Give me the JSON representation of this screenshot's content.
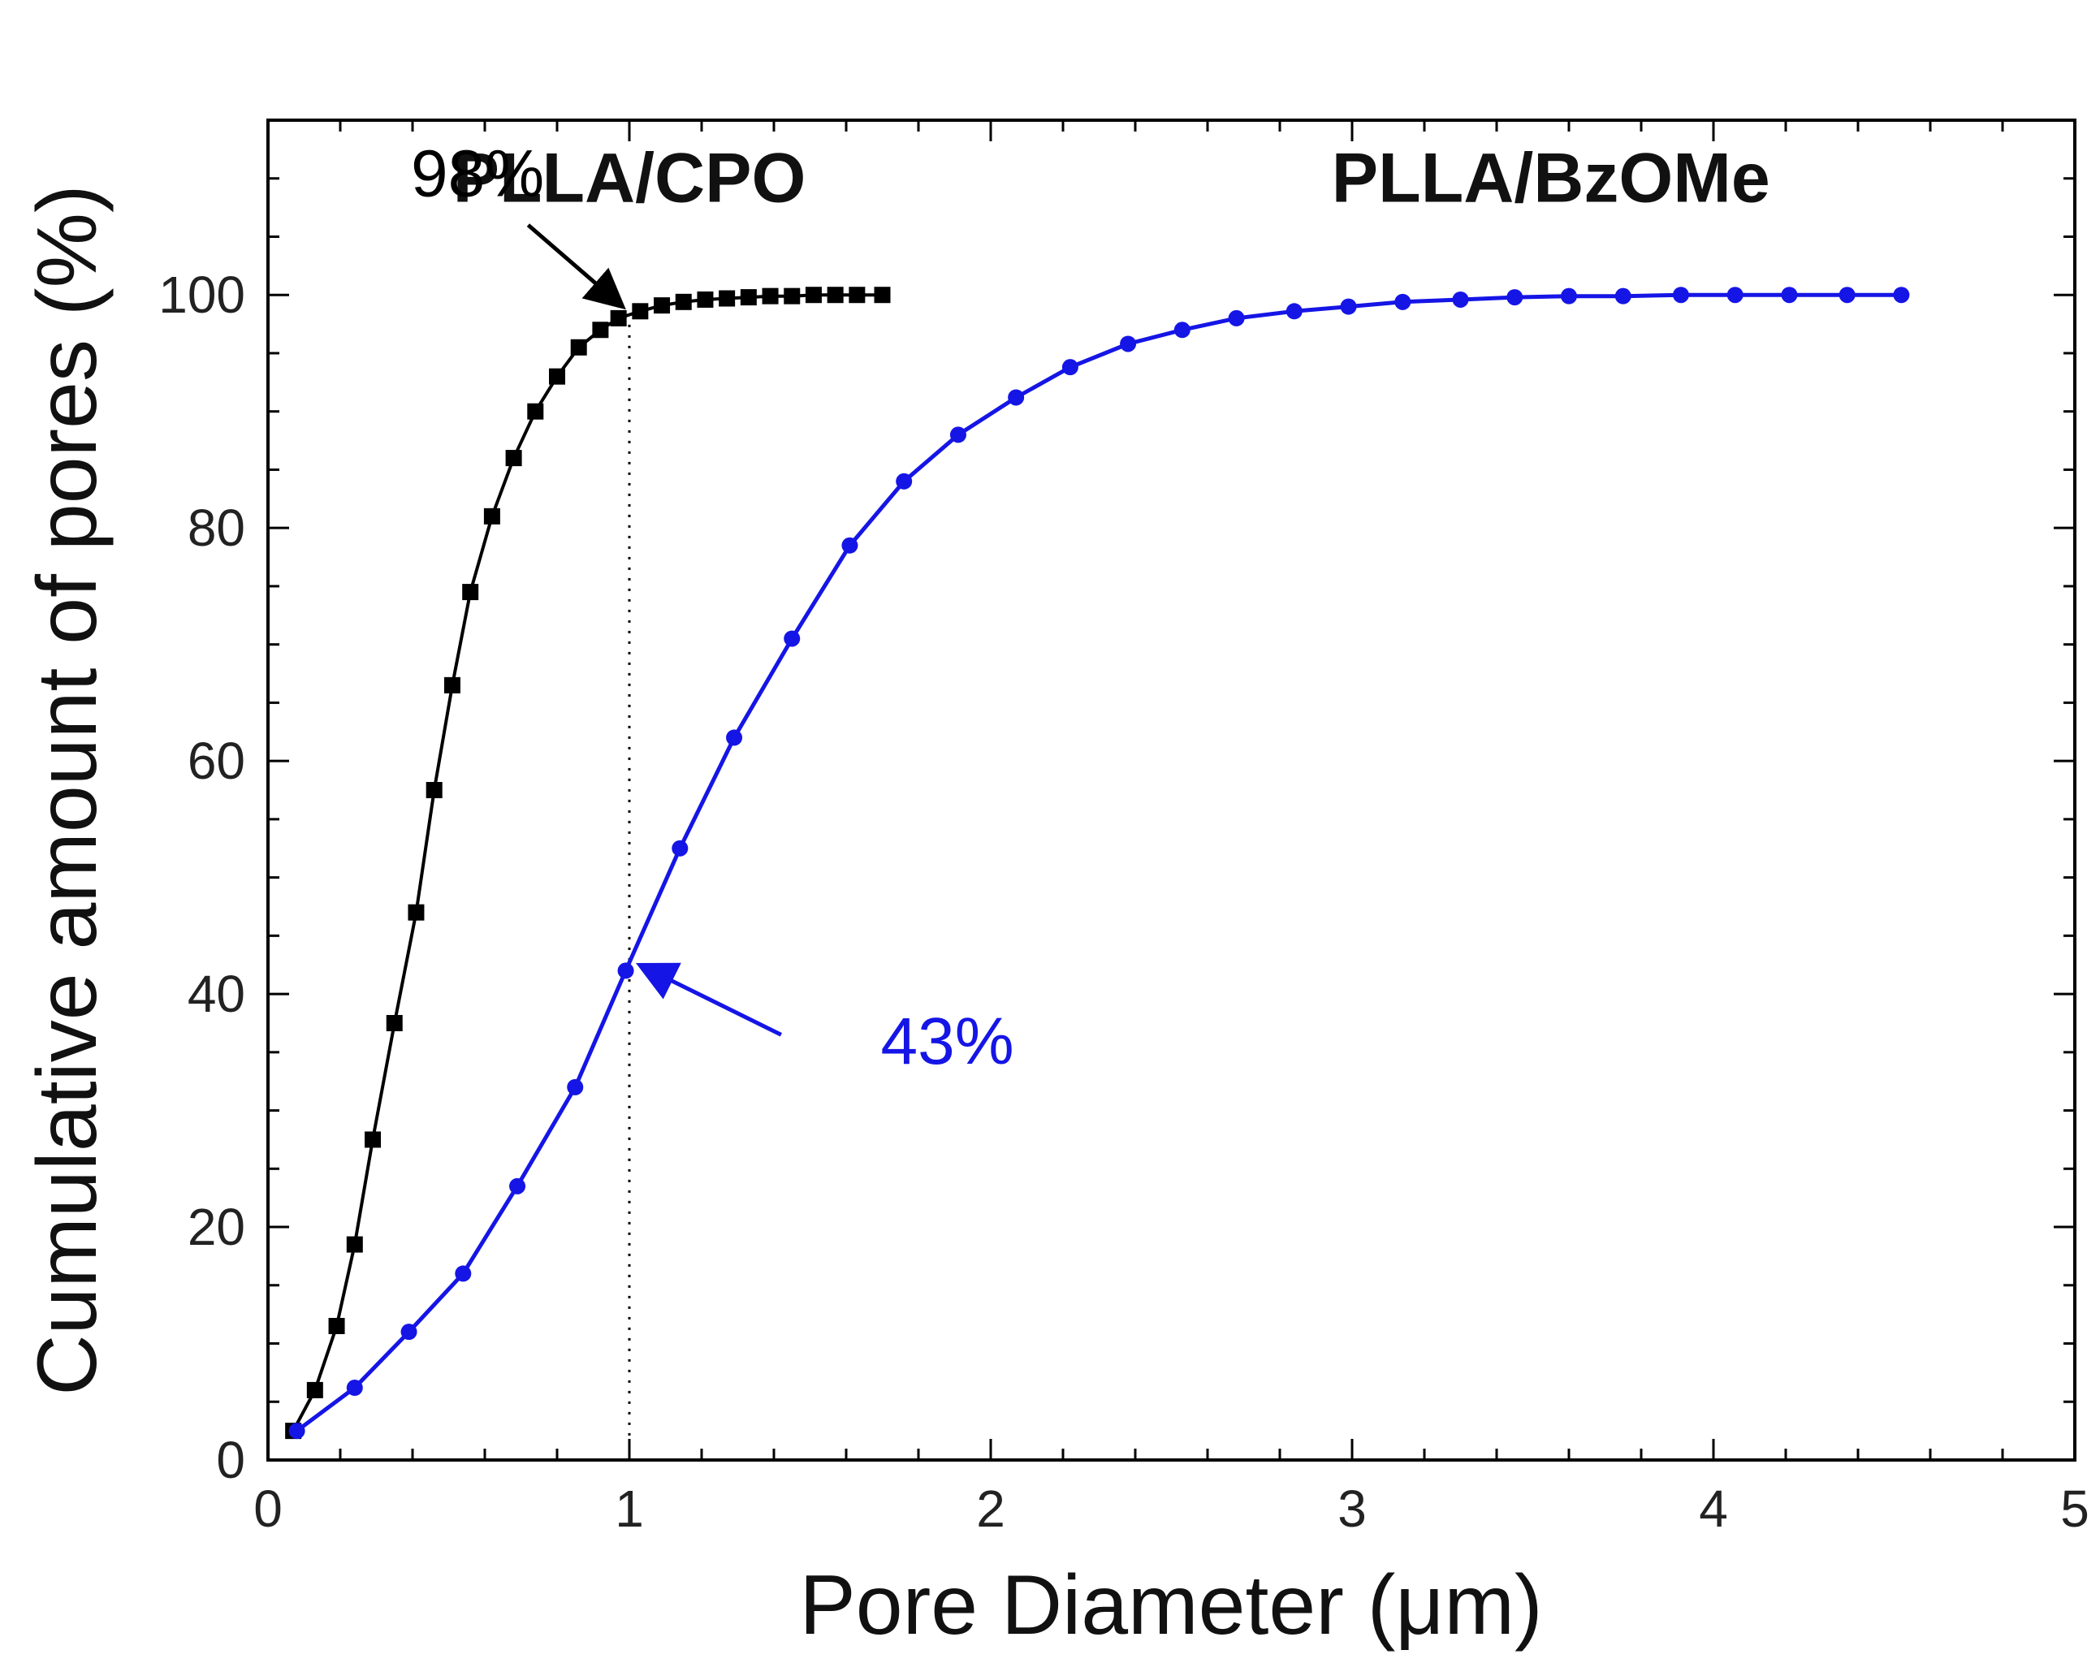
{
  "chart_data": {
    "type": "line",
    "xlabel": "Pore Diameter (μm)",
    "ylabel": "Cumulative amount of pores (%)",
    "xlim": [
      0,
      5
    ],
    "ylim": [
      0,
      115
    ],
    "xticks": [
      0,
      1,
      2,
      3,
      4,
      5
    ],
    "yticks": [
      0,
      20,
      40,
      60,
      80,
      100
    ],
    "xtick_labels": [
      "0",
      "1",
      "2",
      "3",
      "4",
      "5"
    ],
    "ytick_labels": [
      "0",
      "20",
      "40",
      "60",
      "80",
      "100"
    ],
    "grid": false,
    "reference_line": {
      "x": 1.0,
      "style": "dotted"
    },
    "series": [
      {
        "name": "PLLA/CPO",
        "color": "#000000",
        "marker": "square",
        "label_pos": [
          1.0,
          108
        ],
        "x": [
          0.07,
          0.13,
          0.19,
          0.24,
          0.29,
          0.35,
          0.41,
          0.46,
          0.51,
          0.56,
          0.62,
          0.68,
          0.74,
          0.8,
          0.86,
          0.92,
          0.97,
          1.03,
          1.09,
          1.15,
          1.21,
          1.27,
          1.33,
          1.39,
          1.45,
          1.51,
          1.57,
          1.63,
          1.7
        ],
        "y": [
          2.5,
          6,
          11.5,
          18.5,
          27.5,
          37.5,
          47,
          57.5,
          66.5,
          74.5,
          81,
          86,
          90,
          93,
          95.5,
          97,
          98,
          98.6,
          99.1,
          99.4,
          99.6,
          99.7,
          99.8,
          99.9,
          99.9,
          100,
          100,
          100,
          100
        ]
      },
      {
        "name": "PLLA/BzOMe",
        "color": "#1515e6",
        "marker": "dot",
        "label_pos": [
          3.55,
          108
        ],
        "x": [
          0.08,
          0.24,
          0.39,
          0.54,
          0.69,
          0.85,
          0.99,
          1.14,
          1.29,
          1.45,
          1.61,
          1.76,
          1.91,
          2.07,
          2.22,
          2.38,
          2.53,
          2.68,
          2.84,
          2.99,
          3.14,
          3.3,
          3.45,
          3.6,
          3.75,
          3.91,
          4.06,
          4.21,
          4.37,
          4.52
        ],
        "y": [
          2.5,
          6.2,
          11,
          16,
          23.5,
          32,
          42,
          52.5,
          62,
          70.5,
          78.5,
          84,
          88,
          91.2,
          93.8,
          95.8,
          97,
          98,
          98.6,
          99,
          99.4,
          99.6,
          99.8,
          99.9,
          99.9,
          100,
          100,
          100,
          100,
          100
        ]
      }
    ],
    "annotations": [
      {
        "text": "98%",
        "color": "#000000",
        "text_pos": [
          0.58,
          108.5
        ],
        "point": [
          1.0,
          98
        ],
        "arrow_from": [
          0.72,
          106
        ]
      },
      {
        "text": "43%",
        "color": "#1515e6",
        "text_pos": [
          1.88,
          34
        ],
        "point": [
          1.01,
          42.5
        ],
        "arrow_from": [
          1.42,
          36.5
        ]
      }
    ]
  }
}
